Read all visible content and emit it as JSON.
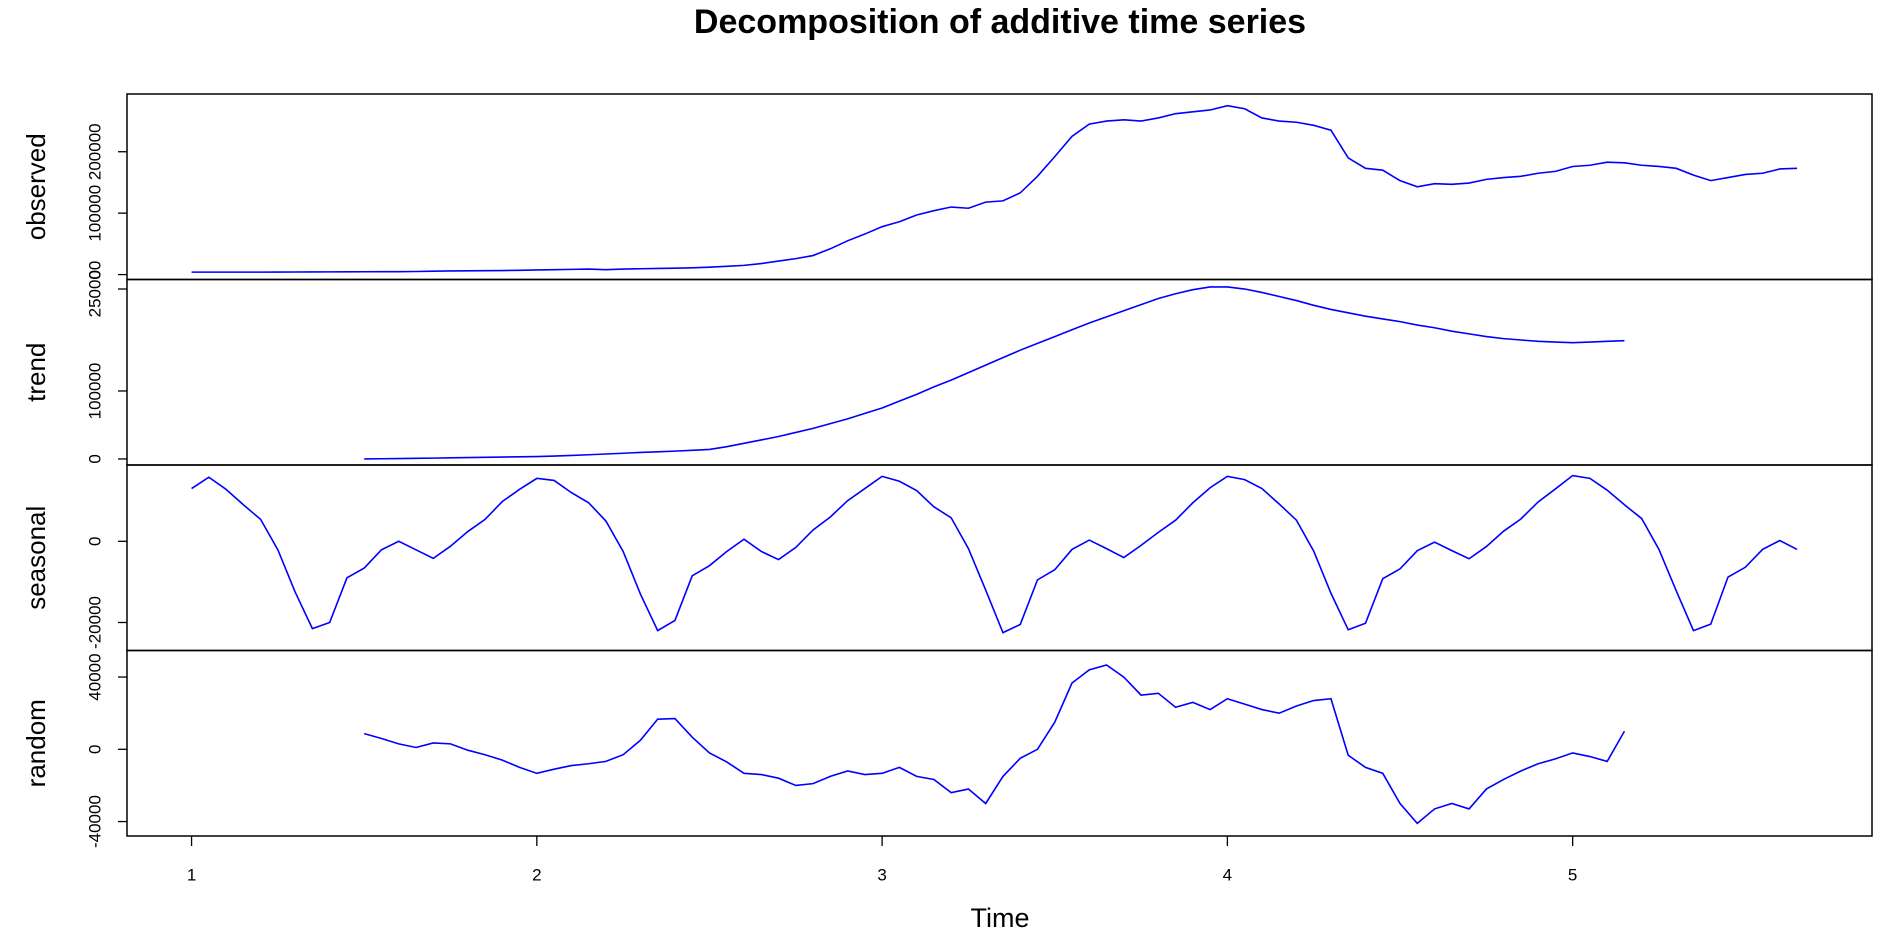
{
  "chart_data": {
    "type": "line",
    "title": "Decomposition of additive time series",
    "xlabel": "Time",
    "xlim": [
      0.813,
      5.867
    ],
    "xticks": [
      1,
      2,
      3,
      4,
      5
    ],
    "x": [
      1,
      1.05,
      1.1,
      1.15,
      1.2,
      1.25,
      1.3,
      1.35,
      1.4,
      1.45,
      1.5,
      1.55,
      1.6,
      1.65,
      1.7,
      1.75,
      1.8,
      1.85,
      1.9,
      1.95,
      2,
      2.05,
      2.1,
      2.15,
      2.2,
      2.25,
      2.3,
      2.35,
      2.4,
      2.45,
      2.5,
      2.55,
      2.6,
      2.65,
      2.7,
      2.75,
      2.8,
      2.85,
      2.9,
      2.95,
      3,
      3.05,
      3.1,
      3.15,
      3.2,
      3.25,
      3.3,
      3.35,
      3.4,
      3.45,
      3.5,
      3.55,
      3.6,
      3.65,
      3.7,
      3.75,
      3.8,
      3.85,
      3.9,
      3.95,
      4,
      4.05,
      4.1,
      4.15,
      4.2,
      4.25,
      4.3,
      4.35,
      4.4,
      4.45,
      4.5,
      4.55,
      4.6,
      4.65,
      4.7,
      4.75,
      4.8,
      4.85,
      4.9,
      4.95,
      5,
      5.05,
      5.1,
      5.15,
      5.2,
      5.25,
      5.3,
      5.35,
      5.4,
      5.45,
      5.5,
      5.55,
      5.6,
      5.65
    ],
    "series": [
      {
        "name": "observed",
        "color": "#0000ff",
        "ylim": [
          -8000,
          294000
        ],
        "yticks": [
          0,
          100000,
          200000
        ],
        "values": [
          4000,
          4000,
          4000,
          4000,
          4000,
          4100,
          4200,
          4300,
          4400,
          4500,
          4600,
          4700,
          4800,
          5000,
          5500,
          6000,
          6200,
          6400,
          6600,
          7000,
          7500,
          8000,
          8500,
          9000,
          8000,
          9000,
          9500,
          10000,
          10500,
          11000,
          12000,
          13500,
          15000,
          18000,
          22000,
          26000,
          31000,
          42000,
          55000,
          66000,
          78000,
          86000,
          97000,
          104000,
          110000,
          108000,
          118000,
          120000,
          133000,
          160000,
          192000,
          225000,
          245000,
          250000,
          252000,
          250000,
          255000,
          262000,
          265000,
          268000,
          275000,
          270000,
          255000,
          250000,
          248000,
          243000,
          235000,
          190000,
          173000,
          170000,
          153000,
          143000,
          148000,
          147000,
          149000,
          155000,
          158000,
          160000,
          165000,
          168000,
          176000,
          178000,
          183000,
          182000,
          178000,
          176000,
          173000,
          162000,
          153000,
          158000,
          163000,
          165000,
          172000,
          173000
        ]
      },
      {
        "name": "trend",
        "color": "#0000ff",
        "ylim": [
          -8900,
          264000
        ],
        "yticks": [
          0,
          100000,
          250000
        ],
        "values": [
          null,
          null,
          null,
          null,
          null,
          null,
          null,
          null,
          null,
          null,
          0,
          300,
          600,
          900,
          1200,
          1600,
          2000,
          2400,
          2800,
          3100,
          3500,
          4300,
          5200,
          6200,
          7300,
          8400,
          9600,
          10500,
          11500,
          12700,
          14000,
          18000,
          23000,
          28000,
          33000,
          39000,
          45000,
          52000,
          59000,
          67000,
          75000,
          85000,
          95000,
          106000,
          116000,
          127000,
          138000,
          149000,
          160000,
          170000,
          180000,
          190000,
          200000,
          209000,
          218000,
          227000,
          236000,
          243000,
          249000,
          253000,
          253000,
          250000,
          245000,
          239000,
          233000,
          226000,
          220000,
          215000,
          210000,
          206000,
          202000,
          197000,
          193000,
          188000,
          184000,
          180000,
          177000,
          175000,
          173000,
          172000,
          171000,
          172000,
          173000,
          174000,
          null,
          null,
          null,
          null,
          null,
          null,
          null,
          null,
          null,
          null
        ]
      },
      {
        "name": "seasonal",
        "color": "#0000ff",
        "ylim": [
          -26900,
          18800
        ],
        "yticks": [
          -20000,
          0
        ],
        "values": [
          13000,
          15800,
          12800,
          9000,
          5400,
          -2100,
          -12500,
          -21500,
          -20000,
          -9000,
          -6600,
          -2100,
          0,
          -2100,
          -4200,
          -1200,
          2400,
          5400,
          9800,
          12800,
          15500,
          15000,
          12000,
          9500,
          5000,
          -2500,
          -13000,
          -22000,
          -19500,
          -8500,
          -6000,
          -2500,
          500,
          -2500,
          -4500,
          -1500,
          2800,
          6000,
          10000,
          13000,
          16000,
          14800,
          12500,
          8500,
          5800,
          -1800,
          -12000,
          -22500,
          -20500,
          -9500,
          -7000,
          -2000,
          300,
          -1800,
          -4000,
          -1000,
          2200,
          5200,
          9500,
          13200,
          16000,
          15200,
          13000,
          9200,
          5200,
          -2400,
          -12800,
          -21800,
          -20200,
          -9200,
          -6800,
          -2300,
          -200,
          -2300,
          -4300,
          -1300,
          2500,
          5500,
          9700,
          12900,
          16200,
          15500,
          12600,
          9000,
          5600,
          -2000,
          -12200,
          -22000,
          -20400,
          -8800,
          -6400,
          -2000,
          200,
          -2000
        ]
      },
      {
        "name": "random",
        "color": "#0000ff",
        "ylim": [
          -48000,
          54700
        ],
        "yticks": [
          -40000,
          0,
          40000
        ],
        "values": [
          null,
          null,
          null,
          null,
          null,
          null,
          null,
          null,
          null,
          null,
          8700,
          6000,
          3000,
          1000,
          3500,
          3000,
          -500,
          -3000,
          -6000,
          -10000,
          -13300,
          -11000,
          -9000,
          -8000,
          -6700,
          -3000,
          5000,
          16700,
          17000,
          6700,
          -2000,
          -7000,
          -13300,
          -14000,
          -16000,
          -20000,
          -19000,
          -15000,
          -12000,
          -14000,
          -13300,
          -10000,
          -15000,
          -16700,
          -24000,
          -22000,
          -30000,
          -15000,
          -5000,
          0,
          15000,
          36700,
          44000,
          46700,
          40000,
          30000,
          31000,
          23300,
          26000,
          22000,
          28000,
          25000,
          22000,
          20000,
          24000,
          27000,
          28000,
          -3300,
          -10000,
          -13300,
          -30000,
          -41000,
          -33000,
          -30000,
          -33000,
          -22000,
          -16700,
          -12000,
          -8000,
          -5300,
          -2000,
          -4000,
          -6700,
          10000,
          null,
          null,
          null,
          null,
          null,
          null,
          null,
          null,
          null,
          null
        ]
      }
    ]
  }
}
